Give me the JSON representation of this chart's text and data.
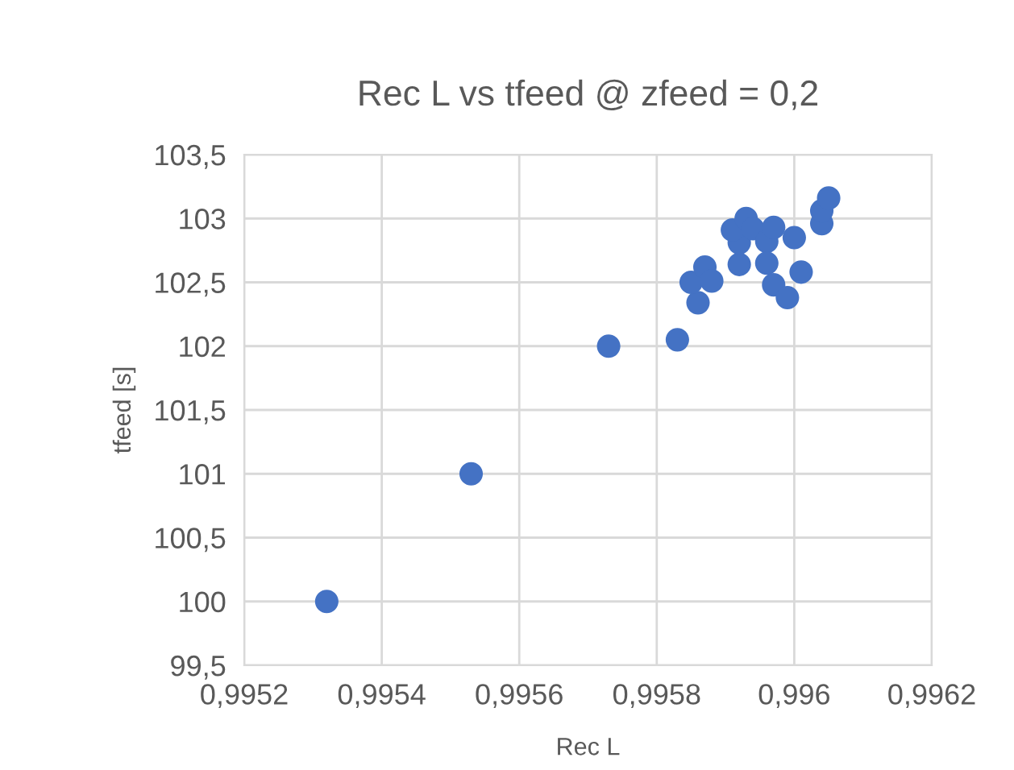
{
  "chart_data": {
    "type": "scatter",
    "title": "Rec L vs tfeed @ zfeed = 0,2",
    "xlabel": "Rec L",
    "ylabel": "tfeed [s]",
    "series": [
      {
        "color": "#4472c4",
        "x": [
          0.99532,
          0.99553,
          0.99573,
          0.99583,
          0.99586,
          0.99585,
          0.99587,
          0.99588,
          0.99592,
          0.99592,
          0.99591,
          0.99593,
          0.99594,
          0.99596,
          0.99596,
          0.99597,
          0.99599,
          0.99597,
          0.996,
          0.99601,
          0.99604,
          0.99604,
          0.99605
        ],
        "values": [
          100,
          101,
          102,
          102.05,
          102.34,
          102.5,
          102.62,
          102.51,
          102.64,
          102.81,
          102.91,
          103.0,
          102.92,
          102.82,
          102.65,
          102.48,
          102.38,
          102.93,
          102.85,
          102.58,
          102.96,
          103.06,
          103.16
        ]
      }
    ],
    "xlim": [
      0.9952,
      0.9962
    ],
    "xticks": [
      {
        "value": 0.9952,
        "label": "0,9952"
      },
      {
        "value": 0.9954,
        "label": "0,9954"
      },
      {
        "value": 0.9956,
        "label": "0,9956"
      },
      {
        "value": 0.9958,
        "label": "0,9958"
      },
      {
        "value": 0.996,
        "label": "0,996"
      },
      {
        "value": 0.9962,
        "label": "0,9962"
      }
    ],
    "ylim": [
      99.5,
      103.5
    ],
    "yticks": [
      {
        "value": 99.5,
        "label": "99,5"
      },
      100,
      {
        "value": 100.5,
        "label": "100,5"
      },
      101,
      {
        "value": 101.5,
        "label": "101,5"
      },
      102,
      {
        "value": 102.5,
        "label": "102,5"
      },
      103,
      {
        "value": 103.5,
        "label": "103,5"
      }
    ],
    "grid": true,
    "marker": "circle"
  }
}
